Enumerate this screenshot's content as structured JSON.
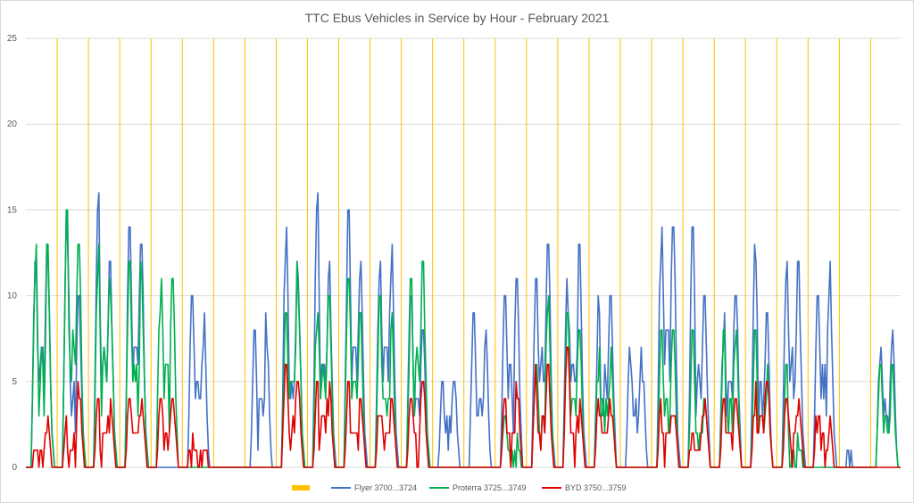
{
  "chart_data": {
    "type": "line",
    "title": "TTC Ebus Vehicles in Service by Hour - February 2021",
    "xlabel": "",
    "ylabel": "",
    "ylim": [
      0,
      25
    ],
    "yticks": [
      "0",
      "5",
      "10",
      "15",
      "20",
      "25"
    ],
    "grid": true,
    "legend_position": "bottom",
    "days": 28,
    "hours_per_day": 24,
    "day_marker_color": "#ffc000",
    "series": [
      {
        "name": "Flyer 3700...3724",
        "color": "#4472c4",
        "daily_peaks": [
          [
            13,
            13
          ],
          [
            16,
            10
          ],
          [
            17,
            12
          ],
          [
            15,
            14
          ],
          [
            0,
            0
          ],
          [
            11,
            9
          ],
          [
            0,
            0
          ],
          [
            8,
            9
          ],
          [
            15,
            12
          ],
          [
            17,
            12
          ],
          [
            16,
            13
          ],
          [
            13,
            13
          ],
          [
            10,
            8
          ],
          [
            5,
            5
          ],
          [
            9,
            8
          ],
          [
            11,
            11
          ],
          [
            12,
            14
          ],
          [
            12,
            13
          ],
          [
            10,
            10
          ],
          [
            8,
            7
          ],
          [
            15,
            15
          ],
          [
            15,
            10
          ],
          [
            9,
            11
          ],
          [
            14,
            9
          ],
          [
            13,
            12
          ],
          [
            11,
            12
          ],
          [
            1,
            0
          ],
          [
            7,
            8
          ]
        ]
      },
      {
        "name": "Proterra 3725...3749",
        "color": "#00b050",
        "daily_peaks": [
          [
            14,
            13
          ],
          [
            16,
            14
          ],
          [
            14,
            12
          ],
          [
            13,
            12
          ],
          [
            12,
            11
          ],
          [
            0,
            0
          ],
          [
            0,
            0
          ],
          [
            0,
            0
          ],
          [
            9,
            12
          ],
          [
            11,
            10
          ],
          [
            12,
            9
          ],
          [
            10,
            9
          ],
          [
            12,
            12
          ],
          [
            0,
            0
          ],
          [
            0,
            0
          ],
          [
            3,
            2
          ],
          [
            6,
            10
          ],
          [
            9,
            8
          ],
          [
            7,
            7
          ],
          [
            0,
            0
          ],
          [
            8,
            8
          ],
          [
            8,
            4
          ],
          [
            8,
            8
          ],
          [
            8,
            6
          ],
          [
            6,
            2
          ],
          [
            0,
            0
          ],
          [
            0,
            0
          ],
          [
            6,
            6
          ]
        ]
      },
      {
        "name": "BYD 3750...3759",
        "color": "#e00000",
        "daily_peaks": [
          [
            1,
            3
          ],
          [
            3,
            5
          ],
          [
            4,
            4
          ],
          [
            4,
            4
          ],
          [
            4,
            4
          ],
          [
            2,
            2
          ],
          [
            0,
            0
          ],
          [
            0,
            0
          ],
          [
            6,
            5
          ],
          [
            5,
            5
          ],
          [
            5,
            4
          ],
          [
            5,
            4
          ],
          [
            4,
            5
          ],
          [
            0,
            0
          ],
          [
            0,
            0
          ],
          [
            4,
            5
          ],
          [
            6,
            6
          ],
          [
            7,
            4
          ],
          [
            4,
            4
          ],
          [
            0,
            0
          ],
          [
            4,
            4
          ],
          [
            2,
            4
          ],
          [
            4,
            4
          ],
          [
            5,
            5
          ],
          [
            4,
            4
          ],
          [
            4,
            3
          ],
          [
            0,
            0
          ],
          [
            0,
            0
          ]
        ]
      }
    ],
    "legend": [
      {
        "label": "",
        "color": "#ffc000",
        "kind": "bar"
      },
      {
        "label": "Flyer 3700...3724",
        "color": "#4472c4",
        "kind": "line"
      },
      {
        "label": "Proterra 3725...3749",
        "color": "#00b050",
        "kind": "line"
      },
      {
        "label": "BYD 3750...3759",
        "color": "#e00000",
        "kind": "line"
      }
    ]
  }
}
